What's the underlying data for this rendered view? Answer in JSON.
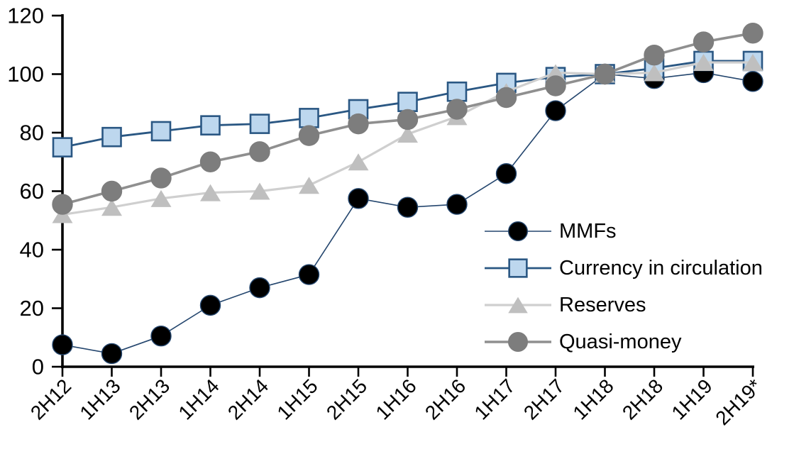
{
  "chart_data": {
    "type": "line",
    "title": "",
    "xlabel": "",
    "ylabel": "",
    "grid": false,
    "ylim": [
      0,
      120
    ],
    "yticks": [
      0,
      20,
      40,
      60,
      80,
      100,
      120
    ],
    "legend_position": "inside-right",
    "categories": [
      "2H12",
      "1H13",
      "2H13",
      "1H14",
      "2H14",
      "1H15",
      "2H15",
      "1H16",
      "2H16",
      "1H17",
      "2H17",
      "1H18",
      "2H18",
      "1H19",
      "2H19*"
    ],
    "series": [
      {
        "name": "MMFs",
        "marker": "circle",
        "marker_color": "#000000",
        "marker_border": "#24466E",
        "line_color": "#24466E",
        "line_width": 1.6,
        "values": [
          7.5,
          4.5,
          10.5,
          21,
          27,
          31.5,
          57.5,
          54.5,
          55.5,
          66,
          87.5,
          100,
          98.5,
          100.5,
          97.5
        ]
      },
      {
        "name": "Currency in circulation",
        "marker": "square",
        "marker_color": "#BDD7EE",
        "marker_border": "#2A5783",
        "line_color": "#2A5783",
        "line_width": 2.8,
        "values": [
          75,
          78.5,
          80.5,
          82.5,
          83,
          85,
          88,
          90.5,
          94,
          97,
          99,
          100,
          102,
          104.5,
          104.5
        ]
      },
      {
        "name": "Reserves",
        "marker": "triangle",
        "marker_color": "#BFBFBF",
        "marker_border": "#BFBFBF",
        "line_color": "#CFCFCF",
        "line_width": 3.2,
        "values": [
          52,
          54.5,
          57.5,
          59.5,
          60,
          62,
          70,
          79.5,
          85.5,
          94,
          100.5,
          100,
          100.5,
          104,
          104
        ]
      },
      {
        "name": "Quasi-money",
        "marker": "circle",
        "marker_color": "#7D7D7D",
        "marker_border": "#7D7D7D",
        "line_color": "#8F8F8F",
        "line_width": 3.6,
        "values": [
          55.5,
          60,
          64.5,
          70,
          73.5,
          79,
          83,
          84.5,
          88,
          92,
          96,
          100,
          106.5,
          111,
          114
        ]
      }
    ]
  },
  "legend": {
    "items": [
      "MMFs",
      "Currency in circulation",
      "Reserves",
      "Quasi-money"
    ]
  },
  "axes": {
    "y_tick_labels": [
      "0",
      "20",
      "40",
      "60",
      "80",
      "100",
      "120"
    ],
    "x_tick_labels": [
      "2H12",
      "1H13",
      "2H13",
      "1H14",
      "2H14",
      "1H15",
      "2H15",
      "1H16",
      "2H16",
      "1H17",
      "2H17",
      "1H18",
      "2H18",
      "1H19",
      "2H19*"
    ],
    "axis_color": "#000000"
  }
}
